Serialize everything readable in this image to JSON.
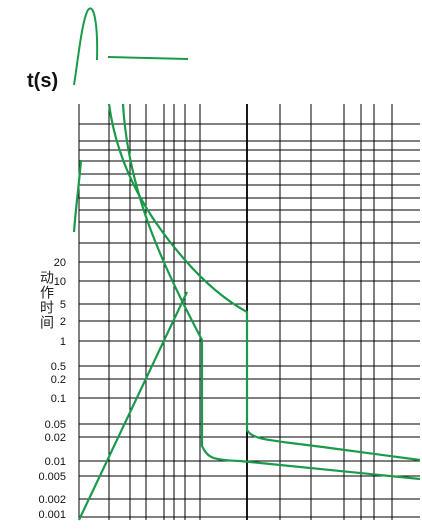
{
  "chart_data": {
    "type": "line",
    "unit_label": "t(s)",
    "ylabel": "动作时间",
    "y_tick_labels": [
      "20",
      "10",
      "5",
      "2",
      "1",
      "0.5",
      "0.2",
      "0.1",
      "0.05",
      "0.02",
      "0.01",
      "0.005",
      "0.002",
      "0.001"
    ],
    "grid": true,
    "line_color": "#1a9a4a",
    "grid_color": "#000000",
    "curves": [
      {
        "id": "upper-trip-curve",
        "points_t": [
          null,
          20,
          10,
          5,
          3.8,
          3.8,
          0.04,
          0.025,
          0.01
        ],
        "note": ""
      },
      {
        "id": "lower-trip-curve",
        "points_t": [
          null,
          10,
          5,
          2,
          1,
          1,
          0.012,
          0.01,
          0.005
        ],
        "note": ""
      },
      {
        "id": "rising-line",
        "points_t": [
          0.0005,
          7
        ]
      }
    ]
  }
}
